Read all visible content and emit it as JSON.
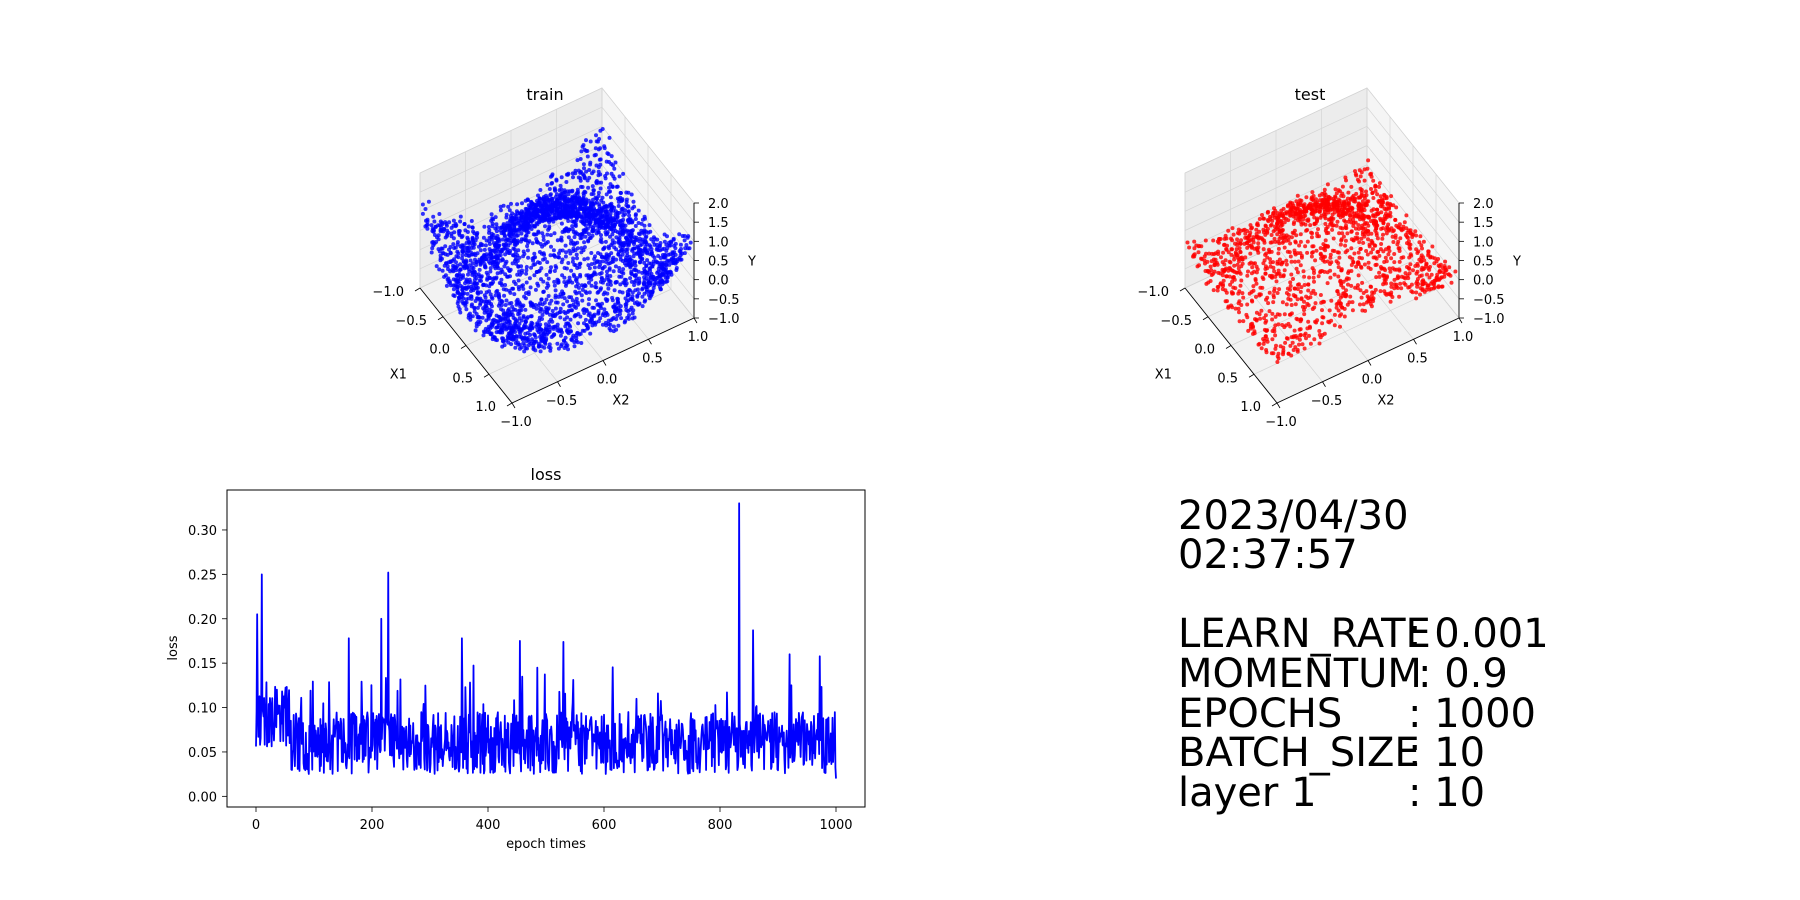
{
  "chart_data": [
    {
      "type": "scatter3d",
      "title": "train",
      "xlabel": "X1",
      "ylabel": "X2",
      "zlabel": "Y",
      "xlim": [
        -1.0,
        1.0
      ],
      "ylim": [
        -1.0,
        1.0
      ],
      "zlim": [
        -1.0,
        2.0
      ],
      "x_ticks": [
        "−1.0",
        "−0.5",
        "0.0",
        "0.5",
        "1.0"
      ],
      "y_ticks": [
        "−1.0",
        "−0.5",
        "0.0",
        "0.5",
        "1.0"
      ],
      "z_ticks": [
        "−1.0",
        "−0.5",
        "0.0",
        "0.5",
        "1.0",
        "1.5",
        "2.0"
      ],
      "color": "#0000ff",
      "surface": "ring-shaped surface sampled on X1, X2 in [-1, 1]",
      "point_count": 3000,
      "grid": true
    },
    {
      "type": "scatter3d",
      "title": "test",
      "xlabel": "X1",
      "ylabel": "X2",
      "zlabel": "Y",
      "xlim": [
        -1.0,
        1.0
      ],
      "ylim": [
        -1.0,
        1.0
      ],
      "zlim": [
        -1.0,
        2.0
      ],
      "x_ticks": [
        "−1.0",
        "−0.5",
        "0.0",
        "0.5",
        "1.0"
      ],
      "y_ticks": [
        "−1.0",
        "−0.5",
        "0.0",
        "0.5",
        "1.0"
      ],
      "z_ticks": [
        "−1.0",
        "−0.5",
        "0.0",
        "0.5",
        "1.0",
        "1.5",
        "2.0"
      ],
      "color": "#ff0000",
      "surface": "predicted surface, rim raised near X1 = 1.0",
      "point_count": 1600,
      "grid": true
    },
    {
      "type": "line",
      "title": "loss",
      "xlabel": "epoch times",
      "ylabel": "loss",
      "xlim": [
        -50,
        1050
      ],
      "ylim": [
        -0.012,
        0.345
      ],
      "x_ticks": [
        0,
        200,
        400,
        600,
        800,
        1000
      ],
      "y_ticks": [
        "0.00",
        "0.05",
        "0.10",
        "0.15",
        "0.20",
        "0.25",
        "0.30"
      ],
      "color": "#0000ff",
      "series": [
        {
          "x_range": [
            0,
            1000
          ],
          "baseline_level": 0.06,
          "noise_range": [
            0.01,
            0.18
          ],
          "peaks": [
            {
              "x": 2,
              "y": 0.205
            },
            {
              "x": 10,
              "y": 0.25
            },
            {
              "x": 160,
              "y": 0.178
            },
            {
              "x": 216,
              "y": 0.2
            },
            {
              "x": 228,
              "y": 0.252
            },
            {
              "x": 355,
              "y": 0.178
            },
            {
              "x": 455,
              "y": 0.175
            },
            {
              "x": 530,
              "y": 0.174
            },
            {
              "x": 833,
              "y": 0.33
            },
            {
              "x": 857,
              "y": 0.187
            },
            {
              "x": 920,
              "y": 0.16
            }
          ],
          "end_value": 0.02
        }
      ],
      "grid": false
    }
  ],
  "info": {
    "date": "2023/04/30",
    "time": "02:37:57",
    "params": [
      {
        "name": "LEARN_RATE",
        "value": ": 0.001"
      },
      {
        "name": "MOMENTUM",
        "value": ": 0.9"
      },
      {
        "name": "EPOCHS",
        "value": ": 1000"
      },
      {
        "name": "BATCH_SIZE",
        "value": ": 10"
      },
      {
        "name": "layer 1",
        "value": ": 10"
      }
    ]
  }
}
